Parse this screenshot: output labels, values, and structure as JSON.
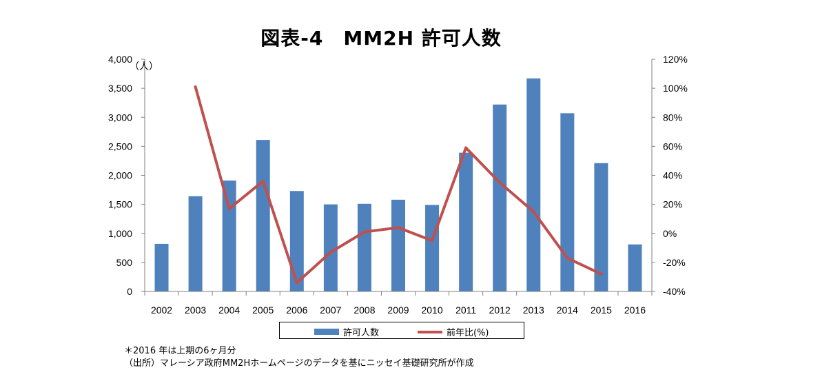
{
  "title": "図表-4　MM2H 許可人数",
  "chart_data": {
    "type": "bar+line",
    "title": "図表-4　MM2H 許可人数",
    "categories": [
      "2002",
      "2003",
      "2004",
      "2005",
      "2006",
      "2007",
      "2008",
      "2009",
      "2010",
      "2011",
      "2012",
      "2013",
      "2014",
      "2015",
      "2016"
    ],
    "series": [
      {
        "name": "許可人数",
        "type": "bar",
        "axis": "left",
        "color": "#4F81BD",
        "values": [
          820,
          1640,
          1910,
          2610,
          1730,
          1500,
          1510,
          1580,
          1490,
          2390,
          3220,
          3670,
          3070,
          2210,
          810
        ]
      },
      {
        "name": "前年比(%)",
        "type": "line",
        "axis": "right",
        "color": "#C0504D",
        "values": [
          null,
          101,
          17,
          36,
          -34,
          -13,
          1,
          4,
          -5,
          59,
          35,
          15,
          -17,
          -28,
          null
        ]
      }
    ],
    "left_axis": {
      "unit_label": "（人）",
      "min": 0,
      "max": 4000,
      "step": 500,
      "tick_labels": [
        "0",
        "500",
        "1,000",
        "1,500",
        "2,000",
        "2,500",
        "3,000",
        "3,500",
        "4,000"
      ]
    },
    "right_axis": {
      "min": -40,
      "max": 120,
      "step": 20,
      "tick_labels": [
        "-40%",
        "-20%",
        "0%",
        "20%",
        "40%",
        "60%",
        "80%",
        "100%",
        "120%"
      ]
    },
    "legend_position": "bottom"
  },
  "notes": {
    "line1": "＊2016 年は上期の6ヶ月分",
    "line2": "（出所）マレーシア政府MM2Hホームページのデータを基にニッセイ基礎研究所が作成"
  }
}
